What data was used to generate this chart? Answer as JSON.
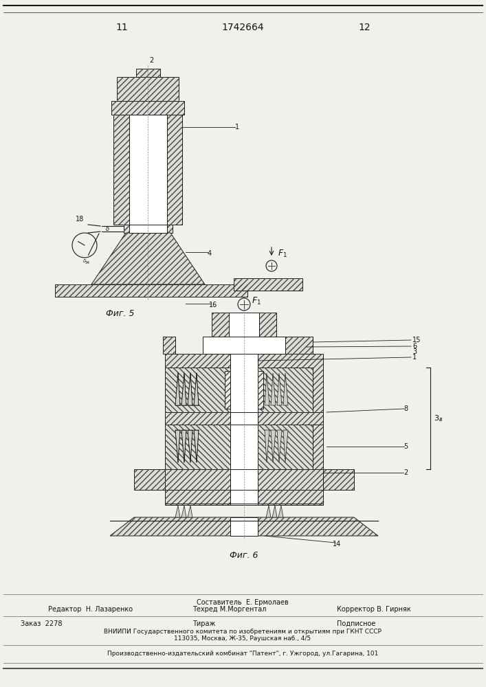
{
  "page_number_left": "11",
  "page_number_center": "1742664",
  "page_number_right": "12",
  "fig5_label": "Фиг. 5",
  "fig6_label": "Фиг. 6",
  "background_color": "#f2f0eb",
  "hatch_color": "#444444",
  "line_color": "#1a1a1a",
  "text_color": "#111111",
  "footer_text_line1": "Составитель  Е. Ермолаев",
  "footer_text_line2_left": "Редактор  Н. Лазаренко",
  "footer_text_line2_mid": "Техред М.Моргентал",
  "footer_text_line2_right": "Корректор В. Гирняк",
  "footer_text_line3_left": "Заказ  2278",
  "footer_text_line3_mid": "Тираж",
  "footer_text_line3_right": "Подписное",
  "footer_text_line4": "ВНИИПИ Государственного комитета по изобретениям и открытиям при ГКНТ СССР",
  "footer_text_line5": "113035, Москва, Ж-35, Раушская наб., 4/5",
  "footer_text_line6": "Производственно-издательский комбинат \"Патент\", г. Ужгород, ул.Гагарина, 101"
}
